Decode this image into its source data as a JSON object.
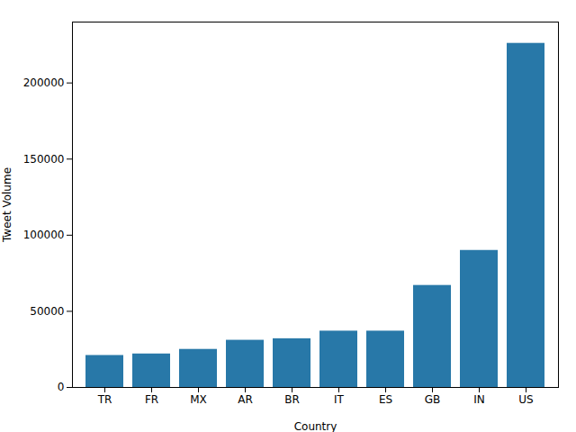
{
  "chart_data": {
    "type": "bar",
    "categories": [
      "TR",
      "FR",
      "MX",
      "AR",
      "BR",
      "IT",
      "ES",
      "GB",
      "IN",
      "US"
    ],
    "values": [
      21000,
      22000,
      25000,
      31000,
      32000,
      37000,
      37000,
      67000,
      90000,
      226000
    ],
    "color": "#2878a8",
    "xlabel": "Country",
    "ylabel": "Tweet Volume",
    "ylim": [
      0,
      240000
    ],
    "yticks": [
      0,
      50000,
      100000,
      150000,
      200000
    ],
    "grid": false
  }
}
